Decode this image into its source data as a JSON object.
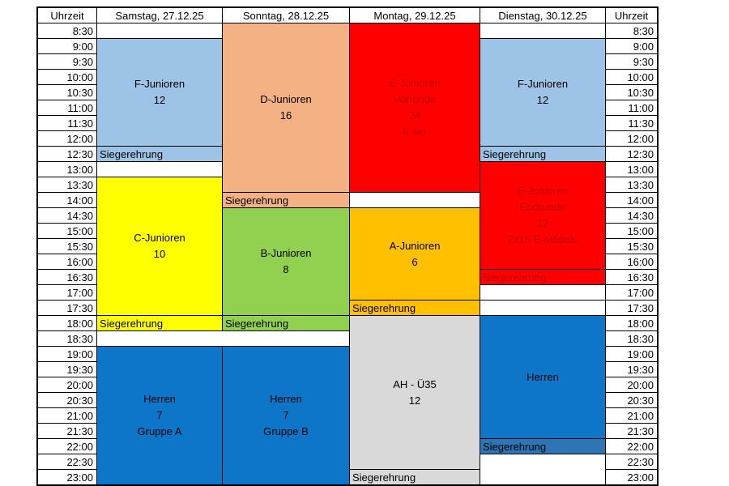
{
  "table": {
    "time_header_left": "Uhrzeit",
    "time_header_right": "Uhrzeit",
    "days": [
      "Samstag, 27.12.25",
      "Sonntag, 28.12.25",
      "Montag, 29.12.25",
      "Dienstag, 30.12.25"
    ],
    "times": [
      "8:30",
      "9:00",
      "9:30",
      "10:00",
      "10:30",
      "11:00",
      "11:30",
      "12:00",
      "12:30",
      "13:00",
      "13:30",
      "14:00",
      "14:30",
      "15:00",
      "15:30",
      "16:00",
      "16:30",
      "17:00",
      "17:30",
      "18:00",
      "18:30",
      "19:00",
      "19:30",
      "20:00",
      "20:30",
      "21:00",
      "21:30",
      "22:00",
      "22:30",
      "23:00"
    ],
    "end_of_day": "23:30"
  },
  "colors": {
    "white": "#FFFFFF",
    "light_blue": "#9DC3E6",
    "peach": "#F4B183",
    "red": "#FF0000",
    "dark_red": "#C00000",
    "yellow": "#FFFF00",
    "green": "#92D050",
    "amber": "#FFC000",
    "gray": "#D9D9D9",
    "blue": "#0E76C8",
    "steel_blue": "#2E75B6",
    "grid": "#000000",
    "text": "#000000"
  },
  "events": [
    {
      "day": 0,
      "start": "9:00",
      "end": "12:30",
      "color": "light_blue",
      "lines": [
        "F-Junioren",
        "12"
      ]
    },
    {
      "day": 0,
      "start": "12:30",
      "end": "13:00",
      "color": "light_blue",
      "label": "Siegerehrung"
    },
    {
      "day": 0,
      "start": "13:30",
      "end": "18:00",
      "color": "yellow",
      "lines": [
        "C-Junioren",
        "10"
      ]
    },
    {
      "day": 0,
      "start": "18:00",
      "end": "18:30",
      "color": "yellow",
      "label": "Siegerehrung"
    },
    {
      "day": 0,
      "day_span": 2,
      "start": "18:30",
      "end": "19:00",
      "color": "white"
    },
    {
      "day": 0,
      "start": "19:00",
      "end": "23:30",
      "color": "blue",
      "lines": [
        "Herren",
        "7",
        "Gruppe A"
      ]
    },
    {
      "day": 1,
      "start": "8:30",
      "end": "14:00",
      "color": "peach",
      "lines": [
        "D-Junioren",
        "16"
      ]
    },
    {
      "day": 1,
      "start": "14:00",
      "end": "14:30",
      "color": "peach",
      "label": "Siegerehrung"
    },
    {
      "day": 1,
      "start": "14:30",
      "end": "18:00",
      "color": "green",
      "lines": [
        "B-Junioren",
        "8"
      ]
    },
    {
      "day": 1,
      "start": "18:00",
      "end": "18:30",
      "color": "green",
      "label": "Siegerehrung"
    },
    {
      "day": 1,
      "start": "19:00",
      "end": "23:30",
      "color": "blue",
      "lines": [
        "Herren",
        "7",
        "Gruppe B"
      ]
    },
    {
      "day": 2,
      "start": "8:30",
      "end": "14:00",
      "color": "red",
      "text_color": "dark_red",
      "lines": [
        "E-Junioren",
        "Vorrunde",
        "24",
        "6 4er"
      ]
    },
    {
      "day": 2,
      "start": "14:30",
      "end": "17:30",
      "color": "amber",
      "lines": [
        "A-Junioren",
        "6"
      ]
    },
    {
      "day": 2,
      "start": "17:30",
      "end": "18:00",
      "color": "amber",
      "label": "Siegerehrung"
    },
    {
      "day": 2,
      "start": "18:00",
      "end": "23:00",
      "color": "gray",
      "lines": [
        "AH - Ü35",
        "12"
      ]
    },
    {
      "day": 2,
      "start": "23:00",
      "end": "23:30",
      "color": "gray",
      "label": "Siegerehrung"
    },
    {
      "day": 3,
      "start": "9:00",
      "end": "12:30",
      "color": "light_blue",
      "lines": [
        "F-Junioren",
        "12"
      ]
    },
    {
      "day": 3,
      "start": "12:30",
      "end": "13:00",
      "color": "light_blue",
      "label": "Siegerehrung"
    },
    {
      "day": 3,
      "start": "13:00",
      "end": "16:30",
      "color": "red",
      "text_color": "dark_red",
      "lines": [
        "E-Junioren",
        "Endrunde",
        "12",
        "2x15 E-Mädels"
      ]
    },
    {
      "day": 3,
      "start": "16:30",
      "end": "17:00",
      "color": "red",
      "text_color": "dark_red",
      "label": "Siegerehrung"
    },
    {
      "day": 3,
      "start": "18:00",
      "end": "22:00",
      "color": "blue",
      "lines": [
        "Herren"
      ]
    },
    {
      "day": 3,
      "start": "22:00",
      "end": "22:30",
      "color": "steel_blue",
      "label": "Siegerehrung"
    },
    {
      "day": 3,
      "start": "22:30",
      "end": "23:30",
      "color": "white"
    }
  ]
}
